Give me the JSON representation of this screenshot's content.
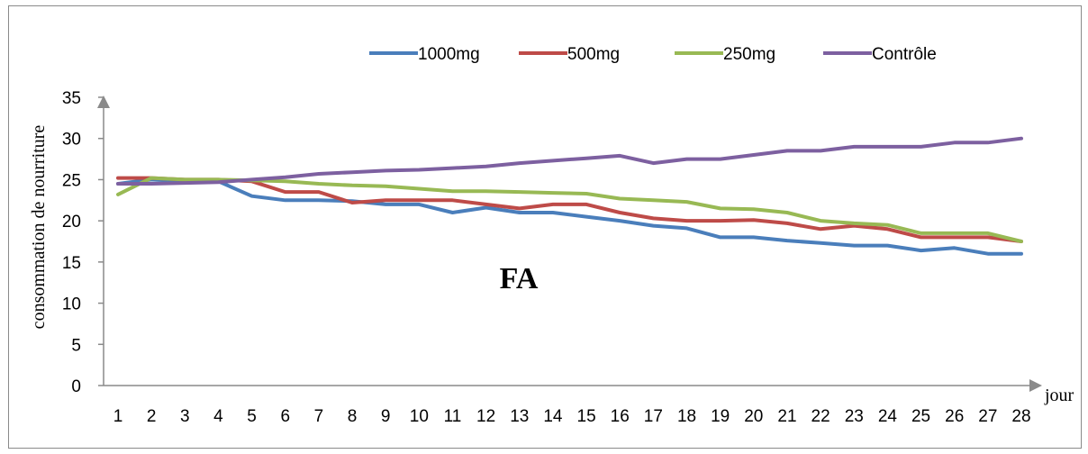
{
  "chart_data": {
    "type": "line",
    "title": "",
    "annotation": "FA",
    "xlabel": "jour",
    "ylabel": "consommation de nourriture",
    "categories": [
      "1",
      "2",
      "3",
      "4",
      "5",
      "6",
      "7",
      "8",
      "9",
      "10",
      "11",
      "12",
      "13",
      "14",
      "15",
      "16",
      "17",
      "18",
      "19",
      "20",
      "21",
      "22",
      "23",
      "24",
      "25",
      "26",
      "27",
      "28"
    ],
    "ylim": [
      0,
      35
    ],
    "yticks": [
      "0",
      "5",
      "10",
      "15",
      "20",
      "25",
      "30",
      "35"
    ],
    "grid": false,
    "legend_position": "top",
    "series": [
      {
        "name": "1000mg",
        "color": "#4a7ebb",
        "values": [
          24.5,
          25,
          24.8,
          24.8,
          23,
          22.5,
          22.5,
          22.4,
          22,
          22,
          21,
          21.6,
          21,
          21,
          20.5,
          20,
          19.4,
          19.1,
          18,
          18,
          17.6,
          17.3,
          17,
          17,
          16.4,
          16.7,
          16,
          16
        ]
      },
      {
        "name": "500mg",
        "color": "#be4b48",
        "values": [
          25.2,
          25.2,
          25,
          25,
          24.8,
          23.5,
          23.5,
          22.2,
          22.5,
          22.5,
          22.5,
          22,
          21.5,
          22,
          22,
          21,
          20.3,
          20,
          20,
          20.1,
          19.7,
          19,
          19.4,
          19,
          18,
          18,
          18,
          17.5
        ]
      },
      {
        "name": "250mg",
        "color": "#98b954",
        "values": [
          23.2,
          25.2,
          25,
          25,
          24.9,
          24.8,
          24.5,
          24.3,
          24.2,
          23.9,
          23.6,
          23.6,
          23.5,
          23.4,
          23.3,
          22.7,
          22.5,
          22.3,
          21.5,
          21.4,
          21,
          20,
          19.7,
          19.5,
          18.5,
          18.5,
          18.5,
          17.5
        ]
      },
      {
        "name": "Contrôle",
        "color": "#7d60a0",
        "values": [
          24.5,
          24.5,
          24.6,
          24.7,
          25,
          25.3,
          25.7,
          25.9,
          26.1,
          26.2,
          26.4,
          26.6,
          27,
          27.3,
          27.6,
          27.9,
          27,
          27.5,
          27.5,
          28,
          28.5,
          28.5,
          29,
          29,
          29,
          29.5,
          29.5,
          30
        ]
      }
    ]
  }
}
